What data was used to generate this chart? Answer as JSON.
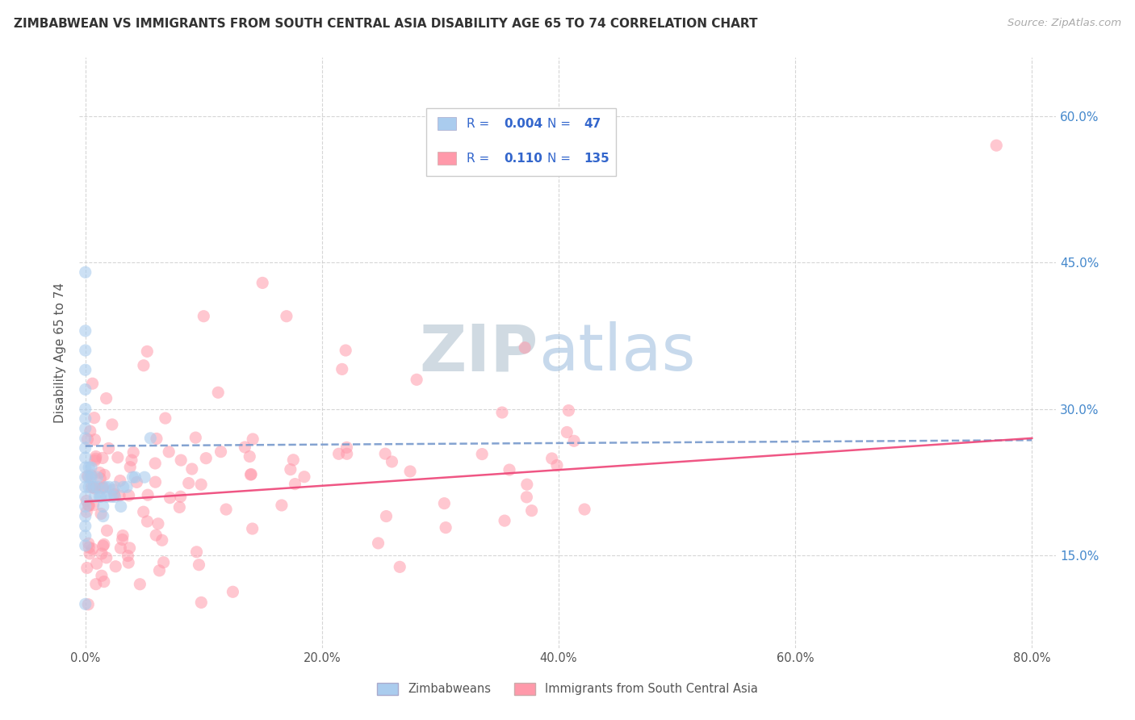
{
  "title": "ZIMBABWEAN VS IMMIGRANTS FROM SOUTH CENTRAL ASIA DISABILITY AGE 65 TO 74 CORRELATION CHART",
  "source": "Source: ZipAtlas.com",
  "ylabel": "Disability Age 65 to 74",
  "legend_r_blue": "0.004",
  "legend_n_blue": "47",
  "legend_r_pink": "0.110",
  "legend_n_pink": "135",
  "legend_label_blue": "Zimbabweans",
  "legend_label_pink": "Immigrants from South Central Asia",
  "blue_color": "#aaccee",
  "pink_color": "#ff99aa",
  "blue_line_color": "#7799cc",
  "pink_line_color": "#ee4477",
  "watermark_zip": "ZIP",
  "watermark_atlas": "atlas",
  "background_color": "#ffffff",
  "grid_color": "#cccccc",
  "xlim": [
    -0.005,
    0.82
  ],
  "ylim": [
    0.055,
    0.66
  ],
  "xticks": [
    0.0,
    0.2,
    0.4,
    0.6,
    0.8
  ],
  "xticklabels": [
    "0.0%",
    "20.0%",
    "40.0%",
    "60.0%",
    "80.0%"
  ],
  "yticks": [
    0.15,
    0.3,
    0.45,
    0.6
  ],
  "yticklabels": [
    "15.0%",
    "30.0%",
    "45.0%",
    "60.0%"
  ]
}
